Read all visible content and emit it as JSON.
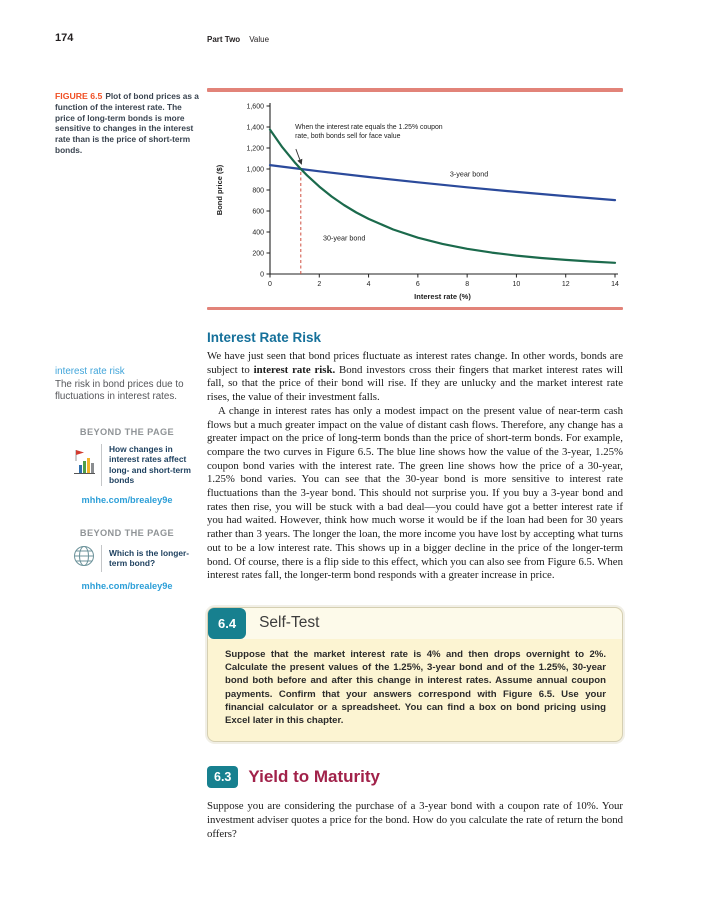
{
  "page": {
    "number": "174",
    "part_label": "Part Two",
    "part_title": "Value"
  },
  "figure": {
    "label": "FIGURE 6.5",
    "caption": "Plot of bond prices as a function of the interest rate. The price of long-term bonds is more sensitive to changes in the interest rate than is the price of short-term bonds."
  },
  "chart_data": {
    "type": "line",
    "xlabel": "Interest rate (%)",
    "ylabel": "Bond price ($)",
    "xlim": [
      0,
      14
    ],
    "ylim": [
      0,
      1600
    ],
    "grid": false,
    "x_ticks": [
      {
        "v": 0,
        "label": "0"
      },
      {
        "v": 2,
        "label": "2"
      },
      {
        "v": 4,
        "label": "4"
      },
      {
        "v": 6,
        "label": "6"
      },
      {
        "v": 8,
        "label": "8"
      },
      {
        "v": 10,
        "label": "10"
      },
      {
        "v": 12,
        "label": "12"
      },
      {
        "v": 14,
        "label": "14"
      }
    ],
    "y_ticks": [
      {
        "v": 0,
        "label": "0"
      },
      {
        "v": 200,
        "label": "200"
      },
      {
        "v": 400,
        "label": "400"
      },
      {
        "v": 600,
        "label": "600"
      },
      {
        "v": 800,
        "label": "800"
      },
      {
        "v": 1000,
        "label": "1,000"
      },
      {
        "v": 1200,
        "label": "1,200"
      },
      {
        "v": 1400,
        "label": "1,400"
      },
      {
        "v": 1600,
        "label": "1,600"
      }
    ],
    "series": [
      {
        "name": "3-year bond",
        "color": "#2b4a9b",
        "label_pos": [
          7.3,
          930
        ],
        "points": [
          [
            0,
            1037
          ],
          [
            1.25,
            1000
          ],
          [
            2,
            978
          ],
          [
            4,
            924
          ],
          [
            6,
            873
          ],
          [
            8,
            826
          ],
          [
            10,
            782
          ],
          [
            12,
            742
          ],
          [
            14,
            704
          ]
        ]
      },
      {
        "name": "30-year bond",
        "color": "#1b6a4c",
        "label_pos": [
          2.15,
          320
        ],
        "points": [
          [
            0,
            1375
          ],
          [
            0.5,
            1208
          ],
          [
            1,
            1065
          ],
          [
            1.25,
            1000
          ],
          [
            1.5,
            940
          ],
          [
            2,
            832
          ],
          [
            2.5,
            738
          ],
          [
            3,
            657
          ],
          [
            3.5,
            586
          ],
          [
            4,
            525
          ],
          [
            5,
            424
          ],
          [
            6,
            346
          ],
          [
            7,
            287
          ],
          [
            8,
            240
          ],
          [
            9,
            204
          ],
          [
            10,
            175
          ],
          [
            11,
            152
          ],
          [
            12,
            134
          ],
          [
            13,
            119
          ],
          [
            14,
            107
          ]
        ]
      }
    ],
    "dashed_line": {
      "x": 1.25,
      "y": 1000,
      "color": "#cf5040"
    },
    "annotation": {
      "line1": "When the interest rate equals the 1.25% coupon",
      "line2": "rate, both bonds sell for face value",
      "text_pos": [
        1.02,
        1380
      ],
      "arrow_from": [
        1.05,
        1190
      ],
      "arrow_to": [
        1.28,
        1045
      ]
    }
  },
  "margin": {
    "key_term": "interest rate risk",
    "key_def": "The risk in bond prices due to fluctuations in interest rates.",
    "beyond1": {
      "heading": "BEYOND THE PAGE",
      "text": "How changes in interest rates affect long- and short-term bonds",
      "link": "mhhe.com/brealey9e"
    },
    "beyond2": {
      "heading": "BEYOND THE PAGE",
      "text": "Which is the longer-term bond?",
      "link": "mhhe.com/brealey9e"
    }
  },
  "sections": {
    "irr": {
      "title": "Interest Rate Risk",
      "p1_before": "We have just seen that bond prices fluctuate as interest rates change. In other words, bonds are subject to ",
      "p1_bold": "interest rate risk.",
      "p1_after": " Bond investors cross their fingers that market interest rates will fall, so that the price of their bond will rise. If they are unlucky and the market interest rate rises, the value of their investment falls.",
      "p2": "A change in interest rates has only a modest impact on the present value of near-term cash flows but a much greater impact on the value of distant cash flows. Therefore, any change has a greater impact on the price of long-term bonds than the price of short-term bonds. For example, compare the two curves in Figure 6.5. The blue line shows how the value of the 3-year, 1.25% coupon bond varies with the interest rate. The green line shows how the price of a 30-year, 1.25% bond varies. You can see that the 30-year bond is more sensitive to interest rate fluctuations than the 3-year bond. This should not surprise you. If you buy a 3-year bond and rates then rise, you will be stuck with a bad deal—you could have got a better interest rate if you had waited. However, think how much worse it would be if the loan had been for 30 years rather than 3 years. The longer the loan, the more income you have lost by accepting what turns out to be a low interest rate. This shows up in a bigger decline in the price of the longer-term bond. Of course, there is a flip side to this effect, which you can also see from Figure 6.5. When interest rates fall, the longer-term bond responds with a greater increase in price."
    },
    "self_test": {
      "number": "6.4",
      "title": "Self-Test",
      "body": "Suppose that the market interest rate is 4% and then drops overnight to 2%. Calculate the present values of the 1.25%, 3-year bond and of the 1.25%, 30-year bond both before and after this change in interest rates. Assume annual coupon payments. Confirm that your answers correspond with Figure 6.5. Use your financial calculator or a spreadsheet. You can find a box on bond pricing using Excel later in this chapter."
    },
    "ytm": {
      "number": "6.3",
      "title": "Yield to Maturity",
      "intro": "Suppose you are considering the purchase of a 3-year bond with a coupon rate of 10%. Your investment adviser quotes a price for the bond. How do you calculate the rate of return the bond offers?"
    }
  },
  "colors": {
    "rule_salmon": "#e28379",
    "figure_label": "#f04f24",
    "a_head_blue": "#15709a",
    "key_term_blue": "#41a5da",
    "link_blue": "#2d9fd8",
    "badge_teal": "#17808f",
    "section_maroon": "#a1224a",
    "line_blue": "#2b4a9b",
    "line_green": "#1b6a4c"
  }
}
